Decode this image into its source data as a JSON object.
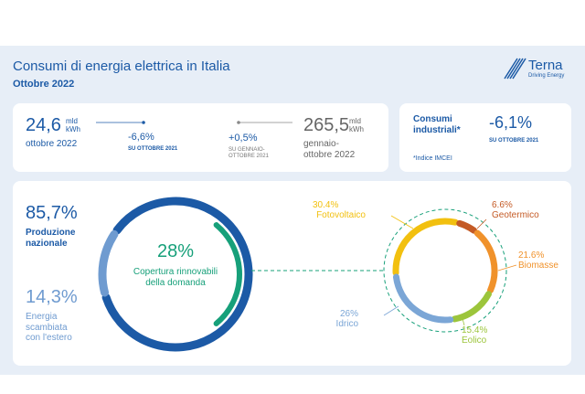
{
  "header": {
    "title": "Consumi di energia elettrica in Italia",
    "subtitle": "Ottobre 2022",
    "logo": "Terna",
    "logo_tagline": "Driving Energy"
  },
  "monthly": {
    "value": "24,6",
    "unit": "mld kWh",
    "period": "ottobre 2022",
    "change": "-6,6%",
    "change_ref": "SU OTTOBRE 2021"
  },
  "ytd": {
    "value": "265,5",
    "unit": "mld kWh",
    "period": "gennaio-ottobre 2022",
    "change": "+0,5%",
    "change_ref": "SU GENNAIO-OTTOBRE 2021"
  },
  "industrial": {
    "label": "Consumi industriali*",
    "change": "-6,1%",
    "change_ref": "SU OTTOBRE 2021",
    "note": "*Indice IMCEI"
  },
  "chart_data": [
    {
      "type": "pie",
      "categories": [
        "Produzione nazionale",
        "Energia scambiata con l'estero"
      ],
      "values": [
        85.7,
        14.3
      ],
      "value_labels": [
        "85,7%",
        "14,3%"
      ],
      "colors": [
        "#1c5aa6",
        "#6f9bd0"
      ],
      "center_value": 28,
      "center_label": "28%",
      "center_text": "Copertura rinnovabili della domanda",
      "center_color": "#17a07a"
    },
    {
      "type": "pie",
      "categories": [
        "Fotovoltaico",
        "Geotermico",
        "Biomasse",
        "Eolico",
        "Idrico"
      ],
      "values": [
        30.4,
        6.6,
        21.6,
        15.4,
        26
      ],
      "value_labels": [
        "30.4%",
        "6.6%",
        "21.6%",
        "15.4%",
        "26%"
      ],
      "colors": [
        "#f2c00f",
        "#c45a25",
        "#f0922b",
        "#9cc53b",
        "#7ba6d6"
      ]
    }
  ]
}
